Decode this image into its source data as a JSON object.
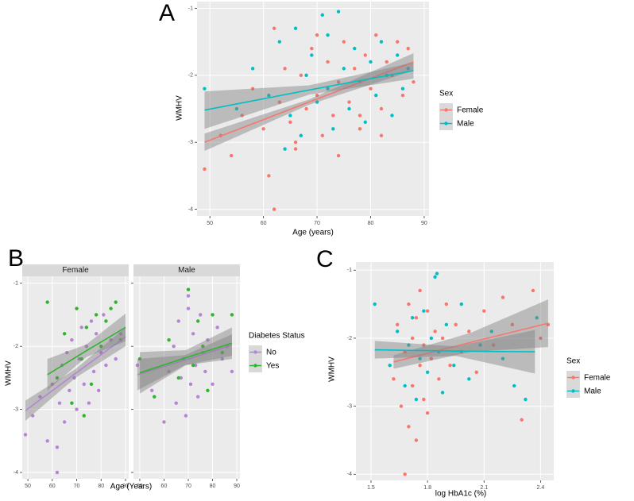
{
  "chart_data": [
    {
      "type": "scatter",
      "panel_label": "A",
      "xlabel": "Age (years)",
      "ylabel": "WMHV",
      "legend_title": "Sex",
      "xlim": [
        47.6,
        90.9
      ],
      "ylim": [
        -4.1,
        -0.9
      ],
      "xticks": [
        50,
        60,
        70,
        80,
        90
      ],
      "yticks": [
        -1,
        -2,
        -3,
        -4
      ],
      "grid": true,
      "series": [
        {
          "name": "Female",
          "color": "#F8766D",
          "x": [
            49,
            52,
            54,
            56,
            58,
            60,
            61,
            62,
            63,
            64,
            65,
            66,
            67,
            68,
            69,
            70,
            71,
            72,
            73,
            74,
            75,
            76,
            77,
            78,
            79,
            80,
            81,
            82,
            83,
            84,
            85,
            86,
            87,
            88,
            62,
            66,
            70,
            74,
            78,
            82
          ],
          "values": [
            -3.4,
            -2.9,
            -3.2,
            -2.6,
            -2.2,
            -2.8,
            -3.5,
            -4.0,
            -2.4,
            -1.9,
            -2.7,
            -3.1,
            -2.0,
            -2.5,
            -1.6,
            -2.3,
            -2.9,
            -1.8,
            -2.6,
            -2.1,
            -1.5,
            -2.4,
            -1.9,
            -2.8,
            -1.7,
            -2.2,
            -1.4,
            -2.5,
            -1.8,
            -2.0,
            -1.5,
            -2.3,
            -1.6,
            -2.1,
            -1.3,
            -3.0,
            -1.4,
            -3.2,
            -2.6,
            -2.9
          ],
          "fit": {
            "x": [
              49,
              68.5,
              88
            ],
            "values": [
              -3.0,
              -2.4,
              -1.8
            ],
            "lower": [
              -3.13,
              -2.44,
              -1.93
            ],
            "upper": [
              -2.87,
              -2.36,
              -1.67
            ]
          }
        },
        {
          "name": "Male",
          "color": "#00BFC4",
          "x": [
            49,
            55,
            58,
            61,
            63,
            65,
            66,
            67,
            68,
            69,
            70,
            71,
            72,
            73,
            74,
            75,
            76,
            77,
            78,
            79,
            80,
            81,
            82,
            83,
            84,
            85,
            86,
            87,
            64,
            72
          ],
          "values": [
            -2.2,
            -2.5,
            -1.9,
            -2.3,
            -1.5,
            -2.6,
            -1.3,
            -2.9,
            -2.0,
            -1.7,
            -2.4,
            -1.1,
            -2.2,
            -2.8,
            -1.05,
            -1.9,
            -2.5,
            -1.6,
            -2.1,
            -2.7,
            -1.8,
            -2.3,
            -1.5,
            -2.0,
            -2.6,
            -1.7,
            -2.2,
            -1.9,
            -3.1,
            -1.4
          ],
          "fit": {
            "x": [
              49,
              68.5,
              88
            ],
            "values": [
              -2.52,
              -2.22,
              -1.93
            ],
            "lower": [
              -2.8,
              -2.29,
              -2.05
            ],
            "upper": [
              -2.24,
              -2.15,
              -1.81
            ]
          }
        }
      ]
    },
    {
      "type": "scatter",
      "panel_label": "B",
      "title": "Female",
      "ylabel": "WMHV",
      "xlim": [
        47.7,
        91.3
      ],
      "ylim": [
        -4.1,
        -0.89
      ],
      "xticks": [
        50,
        60,
        70,
        80,
        90
      ],
      "yticks": [
        -1,
        -2,
        -3,
        -4
      ],
      "grid": true,
      "series": [
        {
          "color": "#B784D4",
          "x": [
            49,
            52,
            55,
            58,
            60,
            62,
            63,
            64,
            65,
            66,
            67,
            68,
            69,
            70,
            71,
            72,
            73,
            74,
            75,
            76,
            77,
            78,
            79,
            80,
            81,
            82,
            84,
            86,
            88,
            62
          ],
          "values": [
            -3.4,
            -3.1,
            -2.8,
            -3.5,
            -2.6,
            -4.0,
            -2.9,
            -2.3,
            -3.2,
            -2.1,
            -2.7,
            -1.9,
            -2.5,
            -3.0,
            -2.2,
            -1.7,
            -2.6,
            -2.0,
            -2.9,
            -1.6,
            -2.4,
            -1.8,
            -2.7,
            -2.1,
            -1.5,
            -2.3,
            -1.9,
            -2.2,
            -1.8,
            -3.6
          ],
          "fit": {
            "x": [
              49,
              69.5,
              90
            ],
            "values": [
              -3.02,
              -2.43,
              -1.85
            ],
            "lower": [
              -3.18,
              -2.5,
              -2.0
            ],
            "upper": [
              -2.86,
              -2.36,
              -1.7
            ]
          }
        },
        {
          "color": "#2DB52D",
          "x": [
            58,
            62,
            65,
            68,
            70,
            72,
            74,
            76,
            78,
            80,
            82,
            84,
            86,
            88,
            73
          ],
          "values": [
            -1.3,
            -2.5,
            -1.8,
            -2.9,
            -1.4,
            -2.2,
            -1.7,
            -2.6,
            -1.5,
            -2.0,
            -1.6,
            -1.4,
            -1.3,
            -1.9,
            -3.1
          ],
          "fit": {
            "x": [
              58,
              74,
              90
            ],
            "values": [
              -2.45,
              -2.07,
              -1.7
            ],
            "lower": [
              -2.7,
              -2.17,
              -1.92
            ],
            "upper": [
              -2.2,
              -1.97,
              -1.48
            ]
          }
        }
      ]
    },
    {
      "type": "scatter",
      "title": "Male",
      "xlabel": "Age (Years)",
      "legend_title": "Diabetes Status",
      "xlim": [
        47.4,
        91.3
      ],
      "ylim": [
        -4.1,
        -0.89
      ],
      "xticks": [
        50,
        60,
        70,
        80,
        90
      ],
      "yticks": [
        -1,
        -2,
        -3,
        -4
      ],
      "grid": true,
      "series": [
        {
          "name": "No",
          "color": "#B784D4",
          "x": [
            49,
            55,
            60,
            62,
            64,
            65,
            66,
            67,
            68,
            69,
            70,
            71,
            72,
            73,
            74,
            75,
            76,
            77,
            78,
            80,
            82,
            84,
            86,
            88,
            70
          ],
          "values": [
            -2.3,
            -2.7,
            -3.2,
            -2.4,
            -2.0,
            -2.9,
            -1.6,
            -2.5,
            -2.2,
            -3.1,
            -1.4,
            -2.6,
            -1.8,
            -2.3,
            -2.8,
            -1.5,
            -2.1,
            -2.4,
            -1.9,
            -2.6,
            -1.7,
            -2.2,
            -2.0,
            -2.4,
            -1.2
          ],
          "fit": {
            "x": [
              49,
              68.5,
              88
            ],
            "values": [
              -2.45,
              -2.22,
              -1.98
            ],
            "lower": [
              -2.7,
              -2.3,
              -2.15
            ],
            "upper": [
              -2.2,
              -2.14,
              -1.81
            ]
          }
        },
        {
          "name": "Yes",
          "color": "#2DB52D",
          "x": [
            50,
            56,
            62,
            66,
            70,
            72,
            74,
            76,
            78,
            80,
            84,
            88
          ],
          "values": [
            -2.2,
            -2.8,
            -1.9,
            -2.5,
            -1.1,
            -2.3,
            -1.6,
            -2.0,
            -2.7,
            -1.5,
            -2.1,
            -1.5
          ],
          "fit": {
            "x": [
              50,
              69,
              88
            ],
            "values": [
              -2.42,
              -2.18,
              -1.95
            ],
            "lower": [
              -2.75,
              -2.3,
              -2.2
            ],
            "upper": [
              -2.09,
              -2.06,
              -1.7
            ]
          }
        }
      ]
    },
    {
      "type": "scatter",
      "panel_label": "C",
      "xlabel": "log HbA1c (%)",
      "ylabel": "WMHV",
      "legend_title": "Sex",
      "xlim": [
        1.42,
        2.47
      ],
      "ylim": [
        -4.09,
        -0.88
      ],
      "xticks": [
        1.5,
        1.8,
        2.1,
        2.4
      ],
      "yticks": [
        -1,
        -2,
        -3,
        -4
      ],
      "grid": true,
      "series": [
        {
          "name": "Female",
          "color": "#F8766D",
          "x": [
            1.62,
            1.64,
            1.66,
            1.68,
            1.7,
            1.7,
            1.72,
            1.72,
            1.74,
            1.74,
            1.76,
            1.76,
            1.78,
            1.78,
            1.8,
            1.8,
            1.82,
            1.84,
            1.86,
            1.88,
            1.9,
            1.92,
            1.95,
            1.98,
            2.02,
            2.06,
            2.1,
            2.15,
            2.2,
            2.25,
            2.3,
            2.36,
            2.4,
            2.44,
            1.68
          ],
          "values": [
            -2.6,
            -1.8,
            -3.0,
            -2.2,
            -1.5,
            -3.3,
            -2.0,
            -2.7,
            -1.7,
            -3.5,
            -2.4,
            -1.3,
            -2.9,
            -2.1,
            -1.6,
            -3.1,
            -2.3,
            -1.9,
            -2.6,
            -2.0,
            -1.5,
            -2.4,
            -1.8,
            -2.2,
            -1.9,
            -2.5,
            -1.6,
            -2.1,
            -1.4,
            -1.8,
            -3.2,
            -1.3,
            -2.0,
            -1.8,
            -4.0
          ],
          "fit": {
            "x": [
              1.62,
              2.03,
              2.44
            ],
            "values": [
              -2.35,
              -2.06,
              -1.78
            ],
            "lower": [
              -2.45,
              -2.2,
              -2.13
            ],
            "upper": [
              -2.25,
              -1.92,
              -1.43
            ]
          }
        },
        {
          "name": "Male",
          "color": "#00BFC4",
          "x": [
            1.52,
            1.6,
            1.64,
            1.68,
            1.7,
            1.72,
            1.74,
            1.76,
            1.78,
            1.8,
            1.82,
            1.84,
            1.86,
            1.88,
            1.9,
            1.94,
            1.98,
            2.02,
            2.08,
            2.14,
            2.2,
            2.26,
            2.32,
            2.38,
            1.85
          ],
          "values": [
            -1.5,
            -2.4,
            -1.9,
            -2.7,
            -2.1,
            -1.7,
            -2.9,
            -2.3,
            -1.6,
            -2.5,
            -2.0,
            -1.1,
            -2.2,
            -2.8,
            -1.8,
            -2.4,
            -1.5,
            -2.6,
            -2.1,
            -1.9,
            -2.3,
            -2.7,
            -2.9,
            -1.7,
            -1.05
          ],
          "fit": {
            "x": [
              1.52,
              1.95,
              2.37
            ],
            "values": [
              -2.17,
              -2.19,
              -2.2
            ],
            "lower": [
              -2.3,
              -2.26,
              -2.52
            ],
            "upper": [
              -2.04,
              -2.12,
              -1.88
            ]
          }
        }
      ]
    }
  ]
}
